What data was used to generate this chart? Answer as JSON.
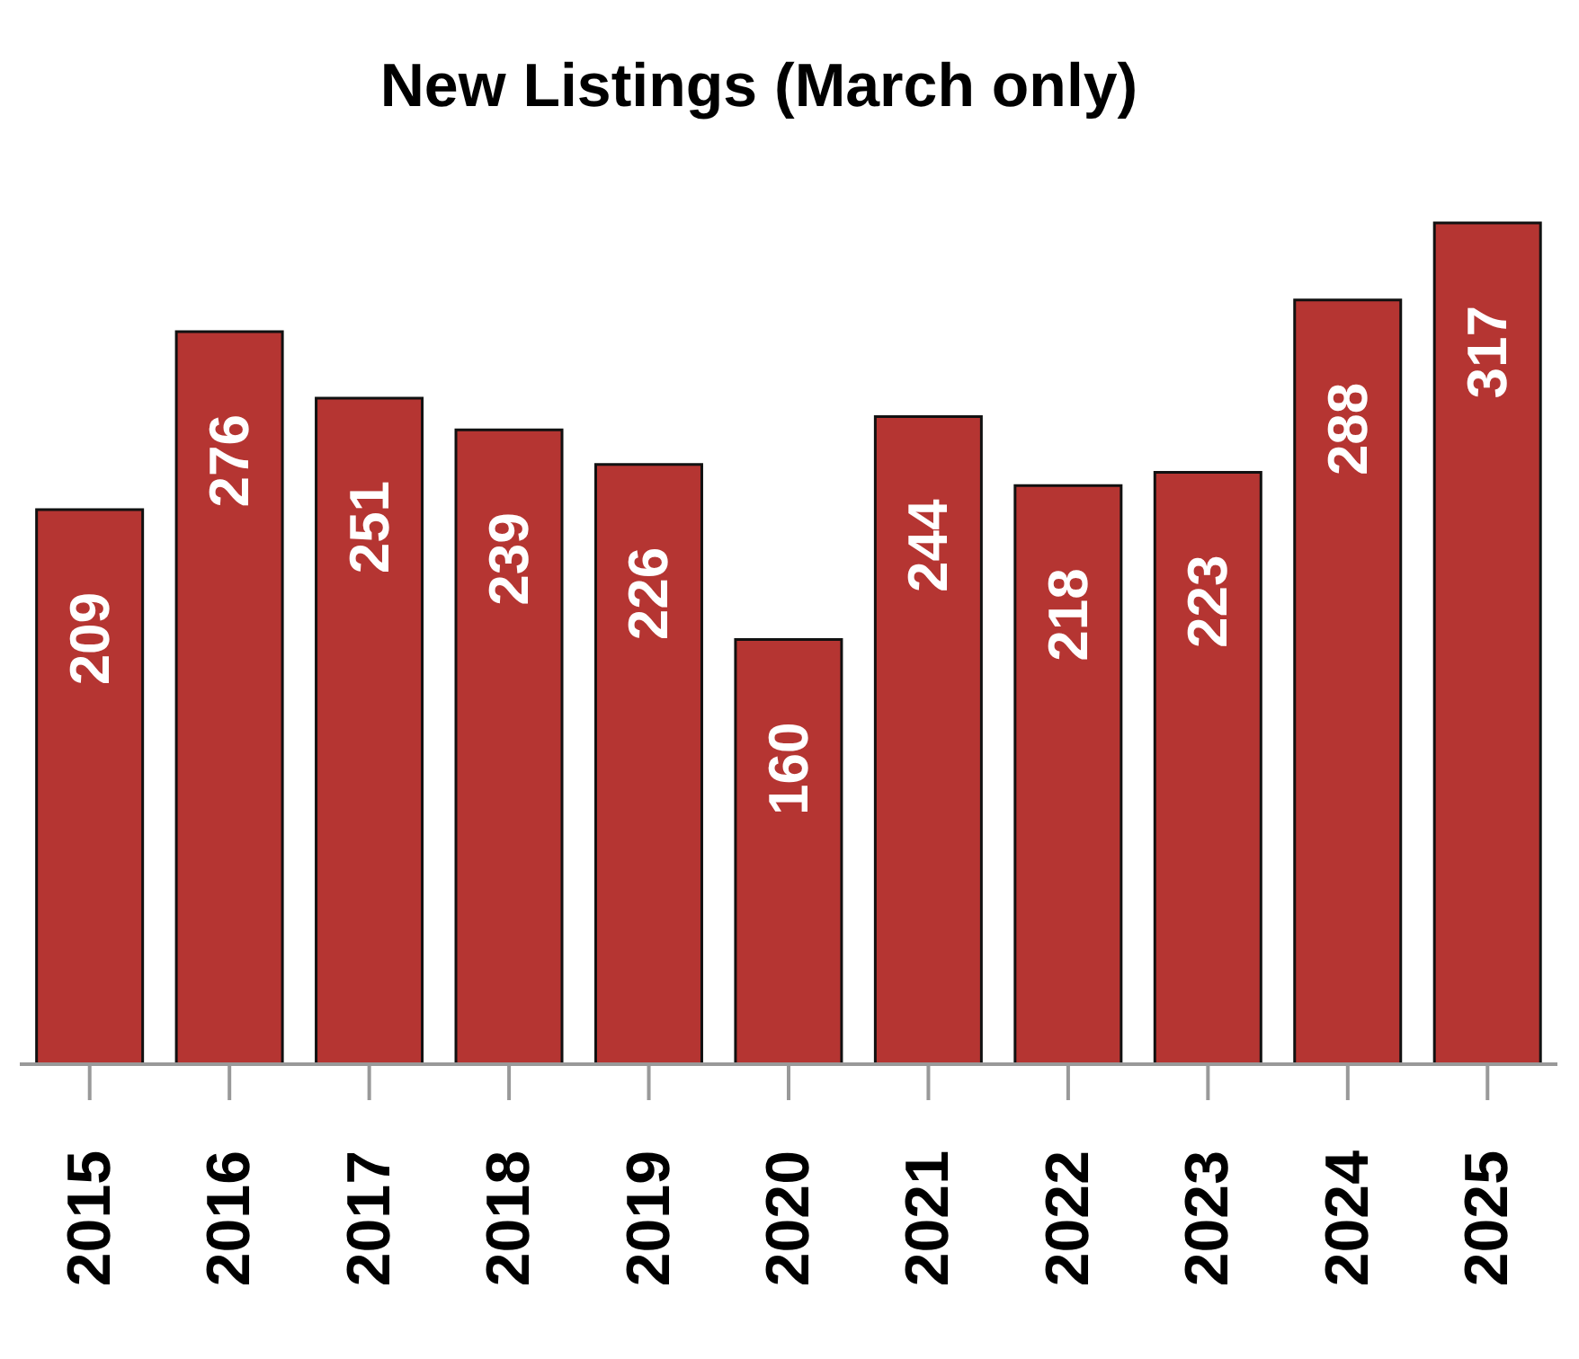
{
  "chart_data": {
    "type": "bar",
    "title": "New Listings (March only)",
    "categories": [
      "2015",
      "2016",
      "2017",
      "2018",
      "2019",
      "2020",
      "2021",
      "2022",
      "2023",
      "2024",
      "2025"
    ],
    "values": [
      209,
      276,
      251,
      239,
      226,
      160,
      244,
      218,
      223,
      288,
      317
    ],
    "color": "#b53532",
    "data_labels": true
  }
}
